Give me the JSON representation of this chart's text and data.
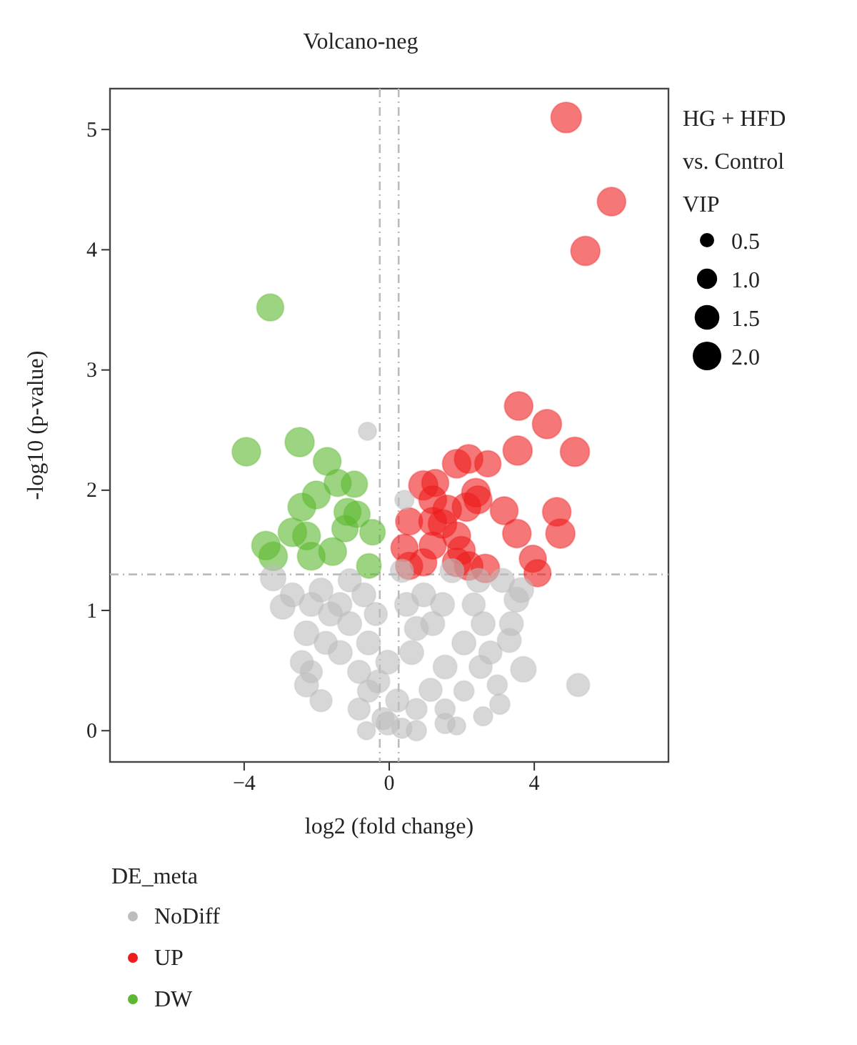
{
  "chart_data": {
    "type": "bubble",
    "title": "Volcano-neg",
    "xlabel": "log2 (fold change)",
    "ylabel": "-log10 (p-value)",
    "legend_title": "DE_meta",
    "annotations": [
      "HG + HFD vs. Control",
      "VIP"
    ],
    "xlim": [
      -7.7,
      7.7
    ],
    "ylim": [
      -0.26,
      5.34
    ],
    "xticks": [
      {
        "value": -4,
        "label": "−4"
      },
      0,
      4
    ],
    "yticks": [
      0,
      1,
      2,
      3,
      4,
      5
    ],
    "grid": false,
    "legend": "bottom",
    "marker": "circle",
    "size_legend": [
      0.5,
      {
        "value": 1,
        "label": "1.0"
      },
      1.5,
      {
        "value": 2,
        "label": "2.0"
      }
    ],
    "ref_lines": [
      {
        "axis": "y",
        "value": 1.3,
        "color": "#bbbbbb",
        "line_style": "dashed"
      },
      {
        "axis": "x",
        "value": -0.26,
        "color": "#bbbbbb",
        "line_style": "dashed"
      },
      {
        "axis": "x",
        "value": 0.26,
        "color": "#bbbbbb",
        "line_style": "dashed"
      }
    ],
    "series": [
      {
        "name": "NoDiff",
        "color": "#bdbdbd",
        "x": [
          -0.6,
          0.42,
          -3.2,
          -2.94,
          -2.28,
          -2.28,
          -2.15,
          -1.75,
          -1.36,
          -1.09,
          -0.57,
          -0.63,
          -0.17,
          0.35,
          0.75,
          1.54,
          1.86,
          2.59,
          3.05,
          3.7,
          5.21,
          3.31,
          3.51,
          3.64,
          3.12,
          2.33,
          2.06,
          1.54,
          1.14,
          0.62,
          0.48,
          0.35,
          0.95,
          1.47,
          2.52,
          2.79,
          -0.04,
          -0.57,
          -1.09,
          -1.62,
          -2.67,
          -0.7,
          -0.37,
          -0.3,
          0.22,
          2.06,
          1.2,
          1.73,
          2.46,
          -1.88,
          -2.41,
          -1.35,
          -0.83,
          0.75,
          1.54,
          -0.83,
          -0.04,
          0.75,
          2.98,
          3.37,
          2.59,
          -1.88,
          -2.15
        ],
        "values": [
          2.49,
          1.92,
          1.27,
          1.03,
          0.81,
          0.38,
          0.49,
          0.73,
          1.05,
          1.25,
          0.33,
          0.0,
          0.1,
          0.02,
          0.18,
          0.06,
          0.04,
          0.12,
          0.22,
          0.51,
          0.38,
          0.75,
          1.09,
          1.17,
          1.25,
          1.05,
          0.73,
          0.53,
          0.34,
          0.65,
          1.05,
          1.33,
          1.13,
          1.05,
          0.53,
          0.65,
          0.57,
          0.73,
          0.89,
          0.97,
          1.13,
          1.13,
          0.97,
          0.41,
          0.25,
          0.33,
          0.89,
          1.33,
          1.25,
          0.25,
          0.57,
          0.65,
          0.49,
          0.85,
          0.18,
          0.18,
          0.06,
          0.0,
          0.38,
          0.89,
          0.89,
          1.17,
          1.05
        ],
        "sizes": [
          0.8,
          0.9,
          1.6,
          1.5,
          1.5,
          1.4,
          1.2,
          1.3,
          1.4,
          1.3,
          1.2,
          0.8,
          1.2,
          1.0,
          1.1,
          1.0,
          0.8,
          0.9,
          1.0,
          1.6,
          1.3,
          1.4,
          1.5,
          1.5,
          1.4,
          1.3,
          1.4,
          1.4,
          1.3,
          1.4,
          1.4,
          1.3,
          1.4,
          1.4,
          1.3,
          1.3,
          1.4,
          1.4,
          1.4,
          1.4,
          1.4,
          1.4,
          1.3,
          1.3,
          1.3,
          1.0,
          1.4,
          1.4,
          1.4,
          1.2,
          1.3,
          1.4,
          1.3,
          1.4,
          1.0,
          1.2,
          1.3,
          1.0,
          1.0,
          1.4,
          1.4,
          1.4,
          1.4
        ]
      },
      {
        "name": "UP",
        "color": "#ee1c1c",
        "x": [
          4.88,
          6.13,
          5.41,
          3.57,
          4.35,
          3.54,
          5.12,
          1.86,
          2.19,
          2.72,
          0.94,
          1.27,
          2.39,
          3.17,
          4.62,
          4.72,
          3.52,
          0.55,
          1.2,
          1.6,
          2.13,
          2.45,
          1.47,
          1.86,
          0.42,
          1.2,
          0.55,
          0.94,
          1.86,
          2.19,
          2.65,
          3.96,
          4.09,
          1.99,
          1.2
        ],
        "values": [
          5.1,
          4.4,
          3.99,
          2.7,
          2.55,
          2.33,
          2.32,
          2.22,
          2.26,
          2.22,
          2.04,
          2.06,
          1.98,
          1.83,
          1.82,
          1.64,
          1.64,
          1.74,
          1.74,
          1.84,
          1.86,
          1.92,
          1.72,
          1.62,
          1.52,
          1.54,
          1.37,
          1.4,
          1.4,
          1.37,
          1.35,
          1.43,
          1.31,
          1.5,
          1.92
        ],
        "sizes": [
          2.3,
          2.0,
          2.1,
          2.0,
          2.1,
          2.1,
          2.1,
          2.0,
          2.0,
          1.7,
          2.1,
          1.8,
          2.0,
          1.9,
          2.0,
          2.1,
          2.0,
          1.8,
          1.9,
          2.0,
          2.0,
          1.9,
          2.0,
          1.9,
          1.8,
          1.8,
          1.8,
          1.8,
          2.0,
          2.0,
          2.0,
          1.8,
          1.8,
          1.9,
          1.9
        ]
      },
      {
        "name": "DW",
        "color": "#5cb82e",
        "x": [
          -3.28,
          -3.94,
          -2.47,
          -1.71,
          -0.96,
          -1.42,
          -2.01,
          -2.41,
          -1.15,
          -0.89,
          -0.46,
          -2.67,
          -2.28,
          -3.4,
          -3.2,
          -2.15,
          -1.56,
          -0.56,
          -1.22
        ],
        "values": [
          3.52,
          2.32,
          2.4,
          2.24,
          2.05,
          2.06,
          1.96,
          1.86,
          1.82,
          1.8,
          1.65,
          1.65,
          1.62,
          1.54,
          1.45,
          1.45,
          1.49,
          1.37,
          1.68
        ],
        "sizes": [
          1.8,
          2.0,
          2.1,
          1.9,
          1.7,
          1.8,
          1.9,
          1.9,
          1.8,
          1.7,
          1.6,
          2.0,
          1.9,
          2.0,
          2.0,
          1.9,
          1.9,
          1.5,
          1.7
        ]
      }
    ]
  }
}
